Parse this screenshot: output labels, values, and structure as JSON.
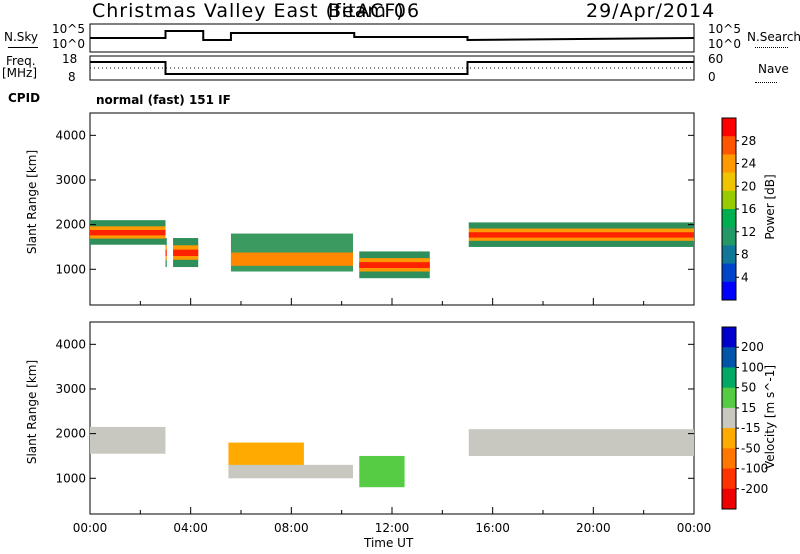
{
  "header": {
    "title": "Christmas Valley East (fitACF)",
    "beam": "Beam 06",
    "date": "29/Apr/2014"
  },
  "noise_panel": {
    "left_label": "N.Sky",
    "right_label": "N.Search",
    "left_ticks": [
      "10^5",
      "10^0"
    ],
    "right_ticks": [
      "10^5",
      "10^0"
    ]
  },
  "freq_panel": {
    "left_label_top": "Freq.",
    "left_label_bottom": "[MHz]",
    "right_label": "Nave",
    "left_ticks": [
      "18",
      "8"
    ],
    "right_ticks": [
      "60",
      "0"
    ]
  },
  "cpid": {
    "label": "CPID",
    "value": "normal (fast) 151 IF"
  },
  "chart_data": [
    {
      "type": "heatmap",
      "title": "",
      "ylabel": "Slant Range [km]",
      "ylim": [
        200,
        4500
      ],
      "yticks": [
        "1000",
        "2000",
        "3000",
        "4000"
      ],
      "colorbar": {
        "label": "Power [dB]",
        "ticks": [
          "28",
          "24",
          "20",
          "16",
          "12",
          "8",
          "4"
        ],
        "colors": [
          "#ff0000",
          "#ff5500",
          "#ff9900",
          "#f0c400",
          "#97cc00",
          "#00b050",
          "#229966",
          "#117799",
          "#0044cc",
          "#0000ff"
        ]
      },
      "bands": [
        {
          "t0": 0.0,
          "t1": 3.0,
          "r0": 1550,
          "r1": 2100,
          "level": "high"
        },
        {
          "t0": 3.0,
          "t1": 4.3,
          "r0": 1050,
          "r1": 1700,
          "level": "high"
        },
        {
          "t0": 5.6,
          "t1": 10.5,
          "r0": 950,
          "r1": 1800,
          "level": "mid"
        },
        {
          "t0": 10.7,
          "t1": 13.5,
          "r0": 800,
          "r1": 1400,
          "level": "high"
        },
        {
          "t0": 15.0,
          "t1": 24.0,
          "r0": 1500,
          "r1": 2050,
          "level": "high"
        }
      ]
    },
    {
      "type": "heatmap",
      "title": "",
      "ylabel": "Slant Range [km]",
      "ylim": [
        200,
        4500
      ],
      "yticks": [
        "1000",
        "2000",
        "3000",
        "4000"
      ],
      "colorbar": {
        "label": "Velocity [m s^-1]",
        "ticks": [
          "200",
          "100",
          "50",
          "15",
          "-15",
          "-50",
          "-100",
          "-200"
        ],
        "colors": [
          "#0000cc",
          "#0055aa",
          "#00aa66",
          "#55cc44",
          "#c8c8c0",
          "#ffaa00",
          "#ff7700",
          "#ff3300",
          "#ee0000"
        ]
      },
      "bands": [
        {
          "t0": 0.0,
          "t1": 3.0,
          "r0": 1550,
          "r1": 2150,
          "level": "gray"
        },
        {
          "t0": 5.5,
          "t1": 8.5,
          "r0": 1250,
          "r1": 1800,
          "level": "orange"
        },
        {
          "t0": 5.5,
          "t1": 10.5,
          "r0": 1000,
          "r1": 1300,
          "level": "gray"
        },
        {
          "t0": 10.7,
          "t1": 12.5,
          "r0": 800,
          "r1": 1500,
          "level": "green"
        },
        {
          "t0": 15.0,
          "t1": 24.0,
          "r0": 1500,
          "r1": 2100,
          "level": "gray"
        }
      ]
    }
  ],
  "x_axis": {
    "label": "Time UT",
    "ticks": [
      "00:00",
      "04:00",
      "08:00",
      "12:00",
      "16:00",
      "20:00",
      "00:00"
    ]
  }
}
